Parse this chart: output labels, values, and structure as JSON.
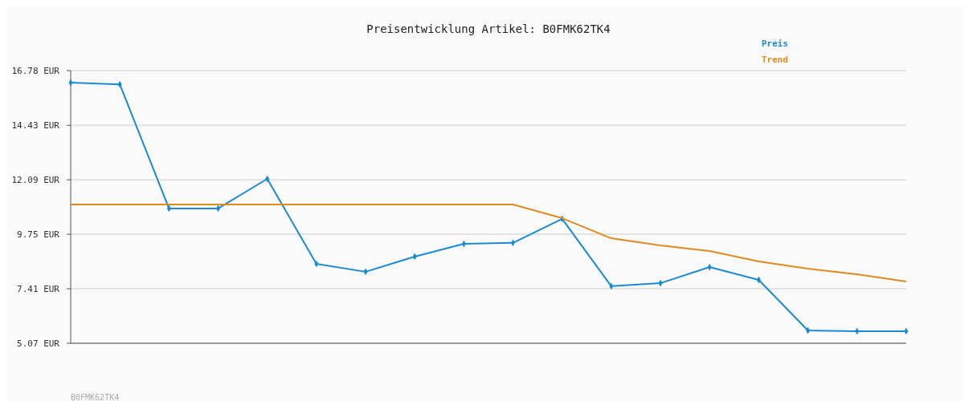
{
  "chart_data": {
    "type": "line",
    "title": "Preisentwicklung Artikel: B0FMK62TK4",
    "categories": [
      null,
      null,
      null,
      null,
      null,
      null,
      null,
      null,
      null,
      null,
      null,
      null,
      null,
      null,
      null,
      null,
      null,
      null
    ],
    "series": [
      {
        "name": "Preis",
        "color": "#1a8ad4",
        "marker": "diamond",
        "values": [
          16.26,
          16.19,
          10.86,
          10.86,
          12.13,
          8.48,
          8.14,
          8.79,
          9.34,
          9.38,
          10.41,
          7.52,
          7.65,
          8.34,
          7.79,
          5.62,
          5.59,
          5.59
        ]
      },
      {
        "name": "Trend",
        "color": "#e08a1e",
        "marker": "none",
        "values": [
          11.03,
          11.03,
          11.03,
          11.03,
          11.03,
          11.03,
          11.03,
          11.03,
          11.03,
          11.03,
          10.44,
          9.58,
          9.27,
          9.03,
          8.58,
          8.27,
          8.03,
          7.72
        ]
      }
    ],
    "ylim": [
      5.07,
      16.78
    ],
    "yticks": [
      {
        "value": 5.07,
        "label": "5.07 EUR"
      },
      {
        "value": 7.41,
        "label": "7.41 EUR"
      },
      {
        "value": 9.75,
        "label": "9.75 EUR"
      },
      {
        "value": 12.09,
        "label": "12.09 EUR"
      },
      {
        "value": 14.43,
        "label": "14.43 EUR"
      },
      {
        "value": 16.78,
        "label": "16.78 EUR"
      }
    ],
    "grid": "y",
    "legend": "top right",
    "annotations": [
      "B0FMK62TK4"
    ]
  }
}
